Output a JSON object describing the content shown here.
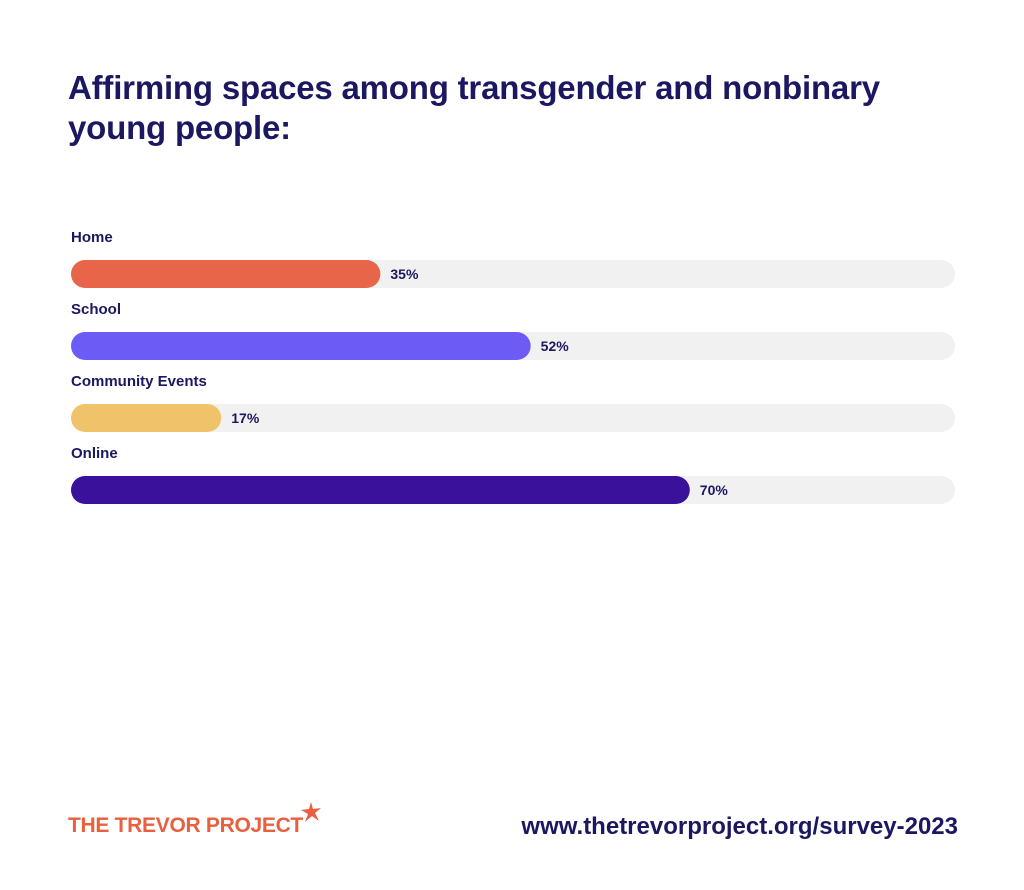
{
  "chart_data": {
    "type": "bar",
    "orientation": "horizontal",
    "title": "Affirming spaces among transgender and nonbinary young people:",
    "categories": [
      "Home",
      "School",
      "Community Events",
      "Online"
    ],
    "values": [
      35,
      52,
      17,
      70
    ],
    "value_labels": [
      "35%",
      "52%",
      "17%",
      "70%"
    ],
    "unit": "%",
    "xlim": [
      0,
      100
    ],
    "grid": false,
    "colors": [
      "#e8654a",
      "#6c5cf5",
      "#f0c36b",
      "#3a119a"
    ],
    "track_color": "#f1f1f1"
  },
  "footer": {
    "logo_text": "THE TREVOR PROJECT",
    "logo_icon": "star-icon",
    "url": "www.thetrevorproject.org/survey-2023"
  }
}
